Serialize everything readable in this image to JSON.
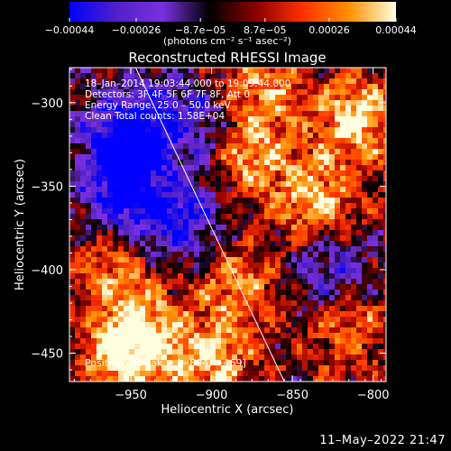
{
  "chart_data": {
    "type": "heatmap",
    "title": "Reconstructed RHESSI Image",
    "xlabel": "Heliocentric X (arcsec)",
    "ylabel": "Heliocentric Y (arcsec)",
    "xlim": [
      -988,
      -792
    ],
    "ylim": [
      -467,
      -279
    ],
    "x_ticks": [
      -950,
      -900,
      -850,
      -800
    ],
    "x_tick_labels": [
      "−950",
      "−900",
      "−850",
      "−800"
    ],
    "y_ticks": [
      -450,
      -400,
      -350,
      -300
    ],
    "y_tick_labels": [
      "−450",
      "−400",
      "−350",
      "−300"
    ],
    "colorbar": {
      "range": [
        -0.00044,
        0.00044
      ],
      "ticks": [
        -0.00044,
        -0.00026,
        -8.7e-05,
        8.7e-05,
        0.00026,
        0.00044
      ],
      "tick_labels": [
        "−0.00044",
        "−0.00026",
        "−8.7e−05",
        "8.7e−05",
        "0.00026",
        "0.00044"
      ],
      "unit_label": "(photons cm⁻² s⁻¹ asec⁻²)",
      "colors": [
        "#0000ff",
        "#5020c8",
        "#7a30e0",
        "#000000",
        "#8b0000",
        "#ff3000",
        "#ff9000",
        "#ffffe0"
      ]
    },
    "annotations": [
      "18–Jan–2014 19:03:44.000 to 19:09:44.000",
      "Detectors: 3F 4F 5F 6F 7F 8F, Att 0",
      "Energy Range: 25.0 – 50.0 keV",
      "Clean     Total counts: 1.58E+04"
    ],
    "peak_label": "Position of Peak = [−894, −469]",
    "limb_line": [
      {
        "x": -947,
        "y": -279
      },
      {
        "x": -855,
        "y": -467
      }
    ],
    "hot_spots": [
      {
        "x": -810,
        "y": -310,
        "value": 0.00044
      },
      {
        "x": -835,
        "y": -360,
        "value": 0.0004
      },
      {
        "x": -875,
        "y": -330,
        "value": 0.00035
      },
      {
        "x": -885,
        "y": -410,
        "value": 0.0003
      },
      {
        "x": -960,
        "y": -400,
        "value": 0.0003
      },
      {
        "x": -955,
        "y": -450,
        "value": 0.00038
      },
      {
        "x": -900,
        "y": -455,
        "value": 0.00036
      },
      {
        "x": -815,
        "y": -435,
        "value": 0.00028
      },
      {
        "x": -870,
        "y": -290,
        "value": 0.0003
      },
      {
        "x": -940,
        "y": -440,
        "value": 0.0003
      }
    ],
    "cold_spots": [
      {
        "x": -955,
        "y": -330,
        "value": -0.00044
      },
      {
        "x": -920,
        "y": -370,
        "value": -0.0004
      },
      {
        "x": -955,
        "y": -360,
        "value": -0.00035
      },
      {
        "x": -945,
        "y": -310,
        "value": -0.0003
      },
      {
        "x": -825,
        "y": -400,
        "value": -0.0003
      },
      {
        "x": -910,
        "y": -310,
        "value": -0.00028
      }
    ]
  },
  "footer": {
    "timestamp": "11–May–2022 21:47"
  }
}
